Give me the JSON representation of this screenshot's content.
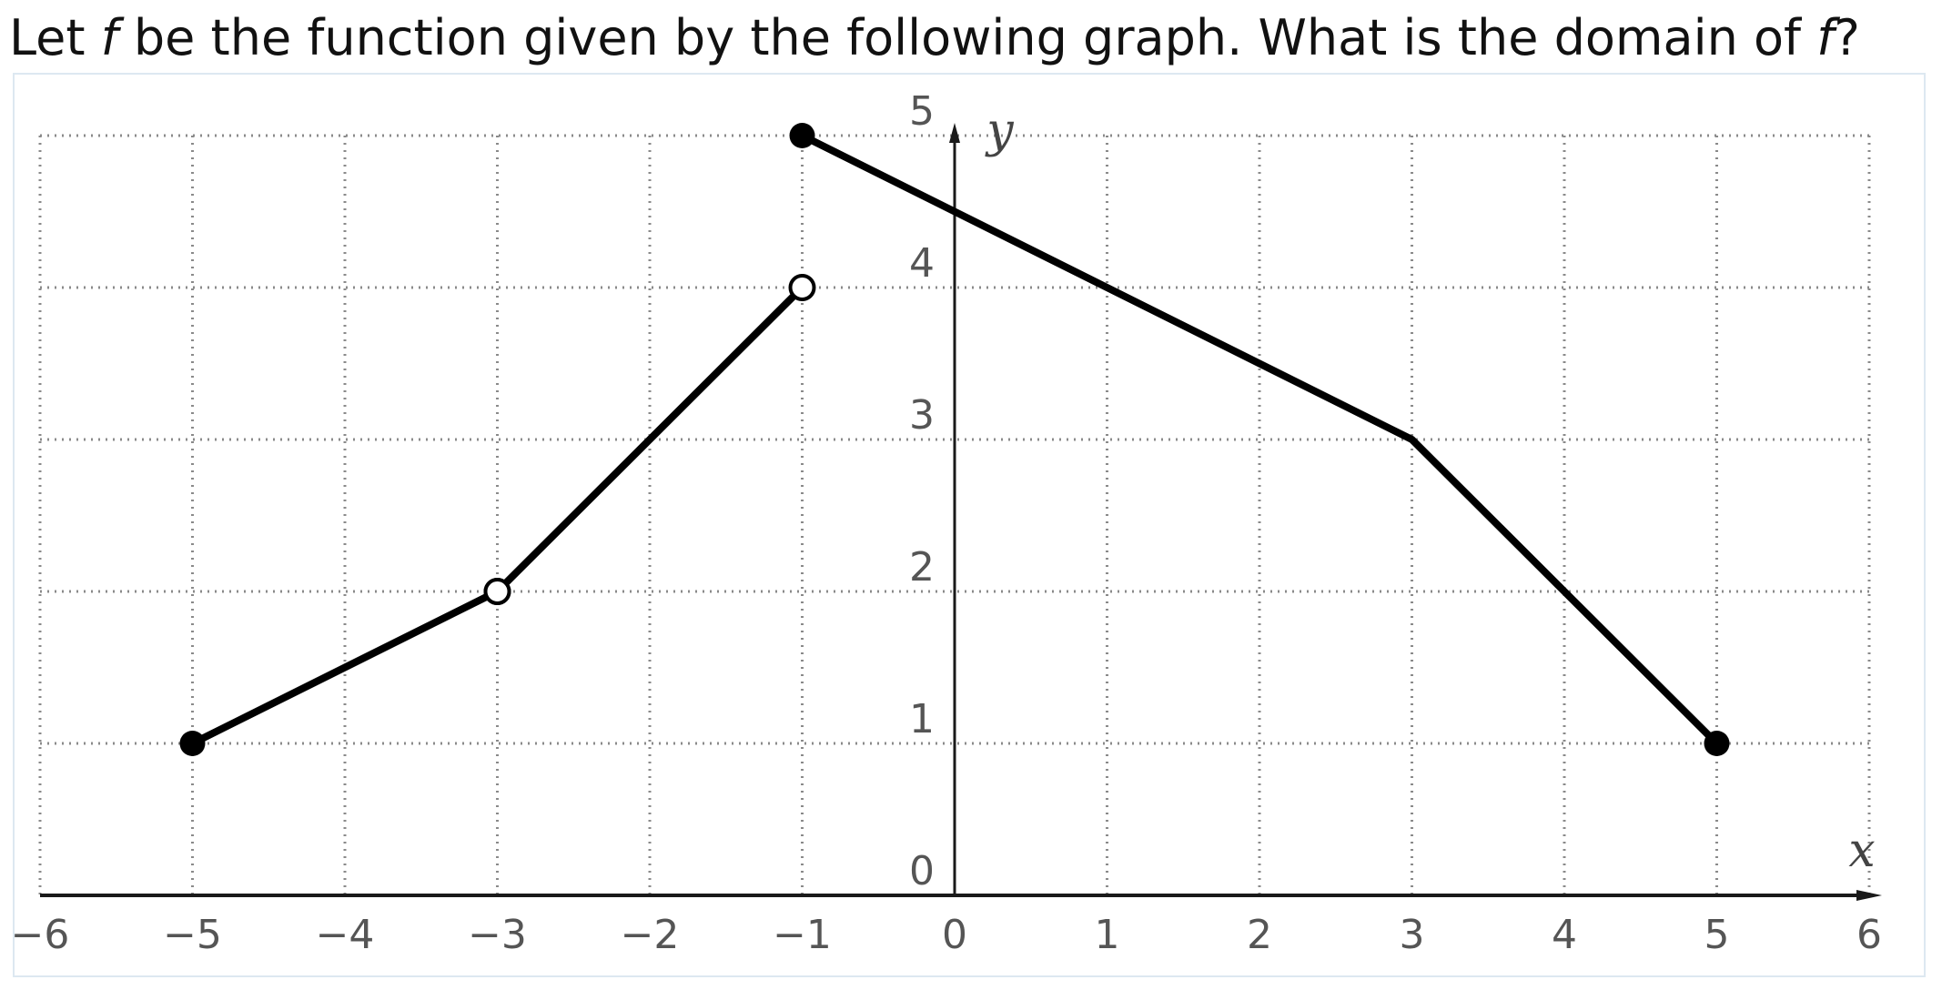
{
  "question": {
    "part1": "Let ",
    "func_symbol": "f",
    "part2": " be the function given by the following graph. What is the domain of ",
    "func_symbol_2": "f",
    "part3": "?"
  },
  "chart_data": {
    "type": "line",
    "title": "",
    "xlabel": "x",
    "ylabel": "y",
    "xlim": [
      -6,
      6
    ],
    "ylim": [
      0,
      5
    ],
    "grid": true,
    "grid_style": "dotted",
    "x_ticks": [
      -6,
      -5,
      -4,
      -3,
      -2,
      -1,
      0,
      1,
      2,
      3,
      4,
      5,
      6
    ],
    "x_tick_labels": [
      "−6",
      "−5",
      "−4",
      "−3",
      "−2",
      "−1",
      "0",
      "1",
      "2",
      "3",
      "4",
      "5",
      "6"
    ],
    "y_ticks": [
      0,
      1,
      2,
      3,
      4,
      5
    ],
    "y_tick_labels": [
      "0",
      "1",
      "2",
      "3",
      "4",
      "5"
    ],
    "segments": [
      {
        "points": [
          {
            "x": -5,
            "y": 1
          },
          {
            "x": -3,
            "y": 2
          }
        ],
        "start_closed": true,
        "end_closed": false
      },
      {
        "points": [
          {
            "x": -3,
            "y": 2
          },
          {
            "x": -1,
            "y": 4
          }
        ],
        "start_closed": false,
        "end_closed": false
      },
      {
        "points": [
          {
            "x": -1,
            "y": 5
          },
          {
            "x": 3,
            "y": 3
          },
          {
            "x": 5,
            "y": 1
          }
        ],
        "start_closed": true,
        "end_closed": true
      }
    ],
    "colors": {
      "line": "#000000",
      "grid": "#8a8a8a",
      "axis": "#1a1a1a",
      "tick_text": "#555555",
      "axis_label": "#444444",
      "open_fill": "#ffffff"
    }
  }
}
